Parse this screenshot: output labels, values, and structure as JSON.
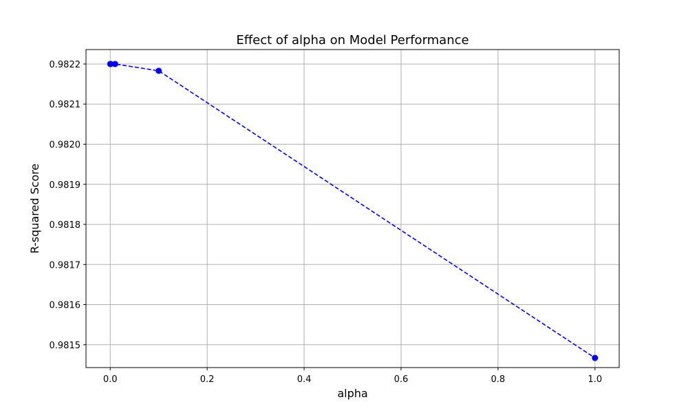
{
  "chart_data": {
    "type": "line",
    "title": "Effect of alpha on Model Performance",
    "xlabel": "alpha",
    "ylabel": "R-squared Score",
    "xlim": [
      -0.05,
      1.05
    ],
    "ylim": [
      0.981443,
      0.982236
    ],
    "xticks": [
      0.0,
      0.2,
      0.4,
      0.6,
      0.8,
      1.0
    ],
    "xtick_labels": [
      "0.0",
      "0.2",
      "0.4",
      "0.6",
      "0.8",
      "1.0"
    ],
    "yticks": [
      0.9815,
      0.9816,
      0.9817,
      0.9818,
      0.9819,
      0.982,
      0.9821,
      0.9822
    ],
    "ytick_labels": [
      "0.9815",
      "0.9816",
      "0.9817",
      "0.9818",
      "0.9819",
      "0.9820",
      "0.9821",
      "0.9822"
    ],
    "grid": true,
    "series": [
      {
        "x": [
          0.0,
          0.001,
          0.01,
          0.1,
          1.0
        ],
        "y": [
          0.9822,
          0.9822,
          0.9822,
          0.982183,
          0.981467
        ],
        "color": "#0000ff",
        "line_style": "dashed",
        "marker": "circle"
      }
    ]
  }
}
